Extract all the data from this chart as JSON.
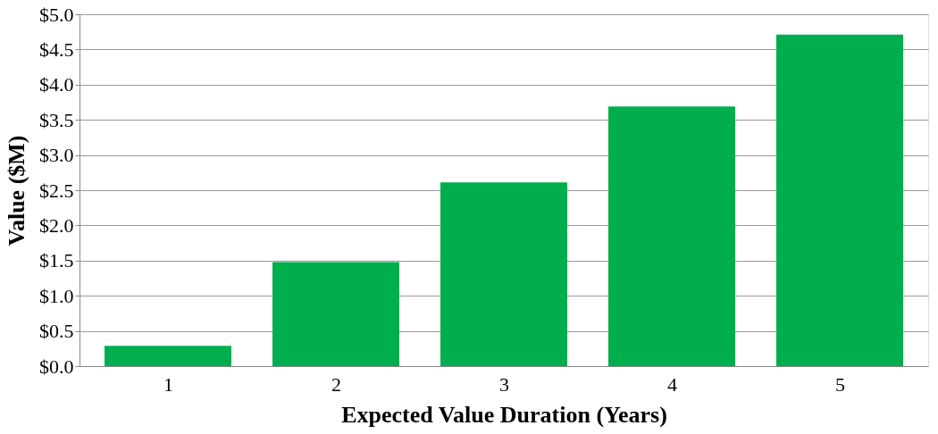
{
  "chart_data": {
    "type": "bar",
    "xlabel": "Expected Value Duration (Years)",
    "ylabel": "Value ($M)",
    "categories": [
      "1",
      "2",
      "3",
      "4",
      "5"
    ],
    "values": [
      0.29,
      1.48,
      2.61,
      3.69,
      4.71
    ],
    "color": "#00ae4d",
    "ylim": [
      0,
      5
    ],
    "yticks": [
      {
        "value": 0,
        "label": "$0.0"
      },
      {
        "value": 0.5,
        "label": "$0.5"
      },
      {
        "value": 1,
        "label": "$1.0"
      },
      {
        "value": 1.5,
        "label": "$1.5"
      },
      {
        "value": 2,
        "label": "$2.0"
      },
      {
        "value": 2.5,
        "label": "$2.5"
      },
      {
        "value": 3,
        "label": "$3.0"
      },
      {
        "value": 3.5,
        "label": "$3.5"
      },
      {
        "value": 4,
        "label": "$4.0"
      },
      {
        "value": 4.5,
        "label": "$4.5"
      },
      {
        "value": 5,
        "label": "$5.0"
      }
    ],
    "grid": "y"
  }
}
